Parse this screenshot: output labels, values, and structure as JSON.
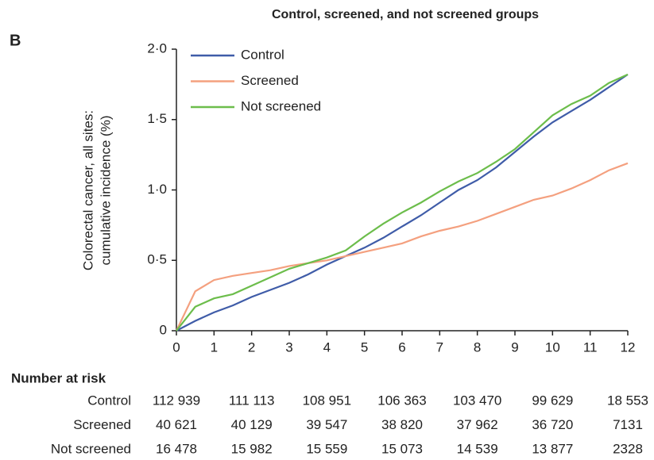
{
  "chart_data": {
    "type": "line",
    "panel": "B",
    "title": "Control, screened, and not screened groups",
    "ylabel": [
      "Colorectal cancer, all sites:",
      "cumulative incidence (%)"
    ],
    "x": [
      0,
      0.5,
      1,
      1.5,
      2,
      2.5,
      3,
      3.5,
      4,
      4.5,
      5,
      5.5,
      6,
      6.5,
      7,
      7.5,
      8,
      8.5,
      9,
      9.5,
      10,
      10.5,
      11,
      11.5,
      12
    ],
    "xlim": [
      0,
      12
    ],
    "xticks": [
      0,
      1,
      2,
      3,
      4,
      5,
      6,
      7,
      8,
      9,
      10,
      11,
      12
    ],
    "ylim": [
      0,
      2
    ],
    "yticks": [
      0,
      {
        "value": 0.5,
        "label": "0·5"
      },
      {
        "value": 1,
        "label": "1·0"
      },
      {
        "value": 1.5,
        "label": "1·5"
      },
      {
        "value": 2,
        "label": "2·0"
      }
    ],
    "grid": false,
    "legend": "top-left",
    "series": [
      {
        "name": "Control",
        "color": "#3f5ca8",
        "values": [
          0,
          0.07,
          0.13,
          0.18,
          0.24,
          0.29,
          0.34,
          0.4,
          0.47,
          0.53,
          0.59,
          0.66,
          0.74,
          0.82,
          0.91,
          1.0,
          1.07,
          1.16,
          1.27,
          1.38,
          1.48,
          1.56,
          1.64,
          1.73,
          1.82
        ]
      },
      {
        "name": "Screened",
        "color": "#f4a07f",
        "values": [
          0,
          0.28,
          0.36,
          0.39,
          0.41,
          0.43,
          0.46,
          0.48,
          0.5,
          0.53,
          0.56,
          0.59,
          0.62,
          0.67,
          0.71,
          0.74,
          0.78,
          0.83,
          0.88,
          0.93,
          0.96,
          1.01,
          1.07,
          1.14,
          1.19
        ]
      },
      {
        "name": "Not screened",
        "color": "#6cbd4b",
        "values": [
          0,
          0.17,
          0.23,
          0.26,
          0.32,
          0.38,
          0.44,
          0.48,
          0.52,
          0.57,
          0.67,
          0.76,
          0.84,
          0.91,
          0.99,
          1.06,
          1.12,
          1.2,
          1.29,
          1.41,
          1.53,
          1.61,
          1.67,
          1.76,
          1.82
        ]
      }
    ]
  },
  "risk_table": {
    "title": "Number at risk",
    "rows": [
      {
        "label": "Control",
        "values": [
          "112 939",
          "111 113",
          "108 951",
          "106 363",
          "103 470",
          "99 629",
          "18 553"
        ]
      },
      {
        "label": "Screened",
        "values": [
          "40 621",
          "40 129",
          "39 547",
          "38 820",
          "37 962",
          "36 720",
          "7131"
        ]
      },
      {
        "label": "Not screened",
        "values": [
          "16 478",
          "15 982",
          "15 559",
          "15 073",
          "14 539",
          "13 877",
          "2328"
        ]
      }
    ]
  }
}
